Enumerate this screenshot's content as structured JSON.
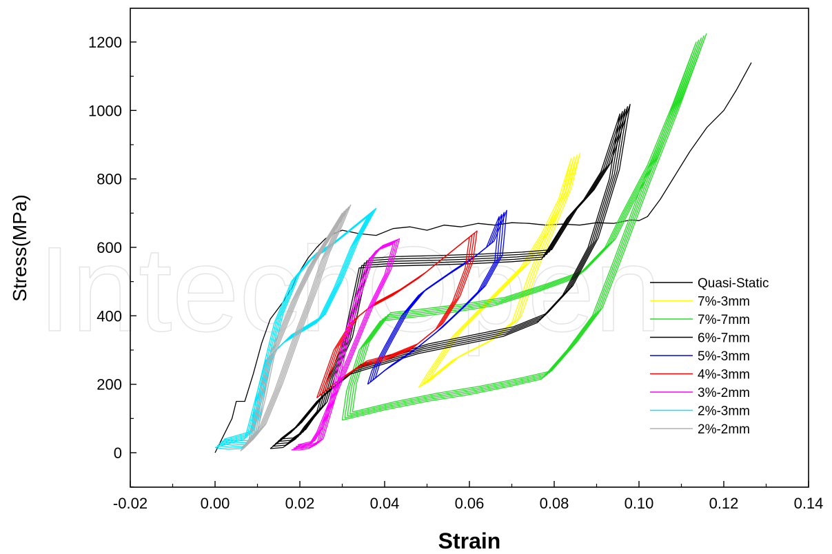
{
  "chart_data": {
    "type": "line",
    "xlabel": "Strain",
    "ylabel": "Stress(MPa)",
    "xlim": [
      -0.02,
      0.14
    ],
    "ylim": [
      -100,
      1300
    ],
    "x_ticks": [
      -0.02,
      0.0,
      0.02,
      0.04,
      0.06,
      0.08,
      0.1,
      0.12,
      0.14
    ],
    "x_tick_labels": [
      "-0.02",
      "0.00",
      "0.02",
      "0.04",
      "0.06",
      "0.08",
      "0.10",
      "0.12",
      "0.14"
    ],
    "y_ticks": [
      0,
      200,
      400,
      600,
      800,
      1000,
      1200
    ],
    "y_tick_labels": [
      "0",
      "200",
      "400",
      "600",
      "800",
      "1000",
      "1200"
    ],
    "grid": false,
    "legend_position": "right",
    "watermark": "IntechOpen",
    "series": [
      {
        "name": "Quasi-Static",
        "color": "#000000",
        "points": [
          [
            0.0,
            0
          ],
          [
            0.002,
            50
          ],
          [
            0.004,
            100
          ],
          [
            0.005,
            150
          ],
          [
            0.007,
            150
          ],
          [
            0.009,
            230
          ],
          [
            0.011,
            320
          ],
          [
            0.013,
            390
          ],
          [
            0.016,
            440
          ],
          [
            0.018,
            480
          ],
          [
            0.02,
            530
          ],
          [
            0.022,
            570
          ],
          [
            0.024,
            600
          ],
          [
            0.026,
            625
          ],
          [
            0.028,
            640
          ],
          [
            0.03,
            650
          ],
          [
            0.034,
            640
          ],
          [
            0.038,
            635
          ],
          [
            0.042,
            655
          ],
          [
            0.046,
            660
          ],
          [
            0.05,
            650
          ],
          [
            0.054,
            665
          ],
          [
            0.058,
            660
          ],
          [
            0.062,
            670
          ],
          [
            0.066,
            665
          ],
          [
            0.07,
            672
          ],
          [
            0.074,
            670
          ],
          [
            0.078,
            665
          ],
          [
            0.082,
            668
          ],
          [
            0.086,
            665
          ],
          [
            0.09,
            672
          ],
          [
            0.094,
            670
          ],
          [
            0.098,
            680
          ],
          [
            0.1,
            678
          ],
          [
            0.102,
            690
          ],
          [
            0.105,
            740
          ],
          [
            0.108,
            800
          ],
          [
            0.112,
            880
          ],
          [
            0.116,
            950
          ],
          [
            0.12,
            1000
          ],
          [
            0.123,
            1060
          ],
          [
            0.1265,
            1140
          ]
        ]
      },
      {
        "name": "7%-3mm",
        "color": "#ffff00",
        "loop": [
          [
            0.048,
            190
          ],
          [
            0.056,
            270
          ],
          [
            0.064,
            320
          ],
          [
            0.07,
            380
          ],
          [
            0.074,
            520
          ],
          [
            0.078,
            640
          ],
          [
            0.082,
            760
          ],
          [
            0.084,
            860
          ],
          [
            0.081,
            740
          ],
          [
            0.077,
            640
          ],
          [
            0.072,
            540
          ],
          [
            0.064,
            440
          ],
          [
            0.056,
            340
          ],
          [
            0.05,
            230
          ]
        ],
        "cycles": 4,
        "dx": 0.0007,
        "dy": 5
      },
      {
        "name": "7%-7mm",
        "color": "#22dd22",
        "loop": [
          [
            0.03,
            95
          ],
          [
            0.04,
            125
          ],
          [
            0.05,
            150
          ],
          [
            0.06,
            170
          ],
          [
            0.07,
            195
          ],
          [
            0.077,
            215
          ],
          [
            0.083,
            300
          ],
          [
            0.089,
            400
          ],
          [
            0.094,
            560
          ],
          [
            0.1,
            760
          ],
          [
            0.107,
            980
          ],
          [
            0.1135,
            1200
          ],
          [
            0.108,
            1020
          ],
          [
            0.102,
            840
          ],
          [
            0.096,
            700
          ],
          [
            0.092,
            600
          ],
          [
            0.085,
            510
          ],
          [
            0.076,
            470
          ],
          [
            0.066,
            430
          ],
          [
            0.056,
            410
          ],
          [
            0.046,
            395
          ],
          [
            0.039,
            385
          ],
          [
            0.034,
            300
          ],
          [
            0.031,
            180
          ]
        ],
        "cycles": 5,
        "dx": 0.0006,
        "dy": 6
      },
      {
        "name": "6%-7mm",
        "color": "#000000",
        "loop": [
          [
            0.013,
            12
          ],
          [
            0.016,
            15
          ],
          [
            0.019,
            40
          ],
          [
            0.021,
            75
          ],
          [
            0.024,
            120
          ],
          [
            0.026,
            200
          ],
          [
            0.03,
            310
          ],
          [
            0.034,
            540
          ],
          [
            0.04,
            545
          ],
          [
            0.05,
            548
          ],
          [
            0.06,
            552
          ],
          [
            0.07,
            558
          ],
          [
            0.077,
            565
          ],
          [
            0.083,
            685
          ],
          [
            0.087,
            740
          ],
          [
            0.091,
            820
          ],
          [
            0.0955,
            990
          ],
          [
            0.093,
            800
          ],
          [
            0.088,
            600
          ],
          [
            0.082,
            460
          ],
          [
            0.076,
            380
          ],
          [
            0.068,
            340
          ],
          [
            0.058,
            315
          ],
          [
            0.048,
            290
          ],
          [
            0.04,
            260
          ],
          [
            0.032,
            230
          ],
          [
            0.024,
            150
          ],
          [
            0.018,
            60
          ]
        ],
        "cycles": 5,
        "dx": 0.0006,
        "dy": 7
      },
      {
        "name": "5%-3mm",
        "color": "#0000ff",
        "loop": [
          [
            0.036,
            200
          ],
          [
            0.04,
            240
          ],
          [
            0.046,
            290
          ],
          [
            0.052,
            350
          ],
          [
            0.058,
            420
          ],
          [
            0.062,
            470
          ],
          [
            0.066,
            560
          ],
          [
            0.067,
            690
          ],
          [
            0.064,
            600
          ],
          [
            0.06,
            560
          ],
          [
            0.055,
            520
          ],
          [
            0.048,
            460
          ],
          [
            0.044,
            400
          ],
          [
            0.04,
            310
          ],
          [
            0.037,
            240
          ]
        ],
        "cycles": 4,
        "dx": 0.0006,
        "dy": 6
      },
      {
        "name": "4%-3mm",
        "color": "#ff0000",
        "loop": [
          [
            0.024,
            160
          ],
          [
            0.028,
            200
          ],
          [
            0.034,
            250
          ],
          [
            0.04,
            270
          ],
          [
            0.046,
            300
          ],
          [
            0.052,
            360
          ],
          [
            0.056,
            440
          ],
          [
            0.059,
            540
          ],
          [
            0.06,
            630
          ],
          [
            0.057,
            600
          ],
          [
            0.053,
            560
          ],
          [
            0.048,
            510
          ],
          [
            0.042,
            460
          ],
          [
            0.036,
            420
          ],
          [
            0.032,
            380
          ],
          [
            0.028,
            300
          ]
        ],
        "cycles": 4,
        "dx": 0.0006,
        "dy": 6
      },
      {
        "name": "3%-2mm",
        "color": "#ff00ff",
        "loop": [
          [
            0.018,
            8
          ],
          [
            0.02,
            8
          ],
          [
            0.022,
            12
          ],
          [
            0.024,
            25
          ],
          [
            0.027,
            150
          ],
          [
            0.03,
            320
          ],
          [
            0.033,
            450
          ],
          [
            0.036,
            560
          ],
          [
            0.038,
            590
          ],
          [
            0.042,
            610
          ],
          [
            0.04,
            520
          ],
          [
            0.036,
            420
          ],
          [
            0.032,
            300
          ],
          [
            0.028,
            180
          ],
          [
            0.024,
            60
          ],
          [
            0.022,
            20
          ]
        ],
        "cycles": 4,
        "dx": 0.0005,
        "dy": 5
      },
      {
        "name": "2%-3mm",
        "color": "#00e5ff",
        "loop": [
          [
            0.0,
            15
          ],
          [
            0.003,
            10
          ],
          [
            0.006,
            12
          ],
          [
            0.008,
            30
          ],
          [
            0.01,
            180
          ],
          [
            0.012,
            270
          ],
          [
            0.016,
            320
          ],
          [
            0.02,
            350
          ],
          [
            0.024,
            380
          ],
          [
            0.028,
            480
          ],
          [
            0.032,
            600
          ],
          [
            0.036,
            690
          ],
          [
            0.033,
            660
          ],
          [
            0.03,
            630
          ],
          [
            0.026,
            590
          ],
          [
            0.022,
            560
          ],
          [
            0.018,
            500
          ],
          [
            0.014,
            380
          ],
          [
            0.01,
            180
          ],
          [
            0.007,
            40
          ]
        ],
        "cycles": 5,
        "dx": 0.0005,
        "dy": 6
      },
      {
        "name": "2%-2mm",
        "color": "#b0b0b0",
        "loop": [
          [
            0.006,
            5
          ],
          [
            0.008,
            40
          ],
          [
            0.01,
            140
          ],
          [
            0.012,
            260
          ],
          [
            0.015,
            350
          ],
          [
            0.018,
            440
          ],
          [
            0.022,
            540
          ],
          [
            0.026,
            620
          ],
          [
            0.03,
            700
          ],
          [
            0.028,
            640
          ],
          [
            0.025,
            560
          ],
          [
            0.022,
            450
          ],
          [
            0.018,
            320
          ],
          [
            0.014,
            180
          ],
          [
            0.01,
            60
          ],
          [
            0.007,
            15
          ]
        ],
        "cycles": 5,
        "dx": 0.0005,
        "dy": 6
      }
    ]
  }
}
